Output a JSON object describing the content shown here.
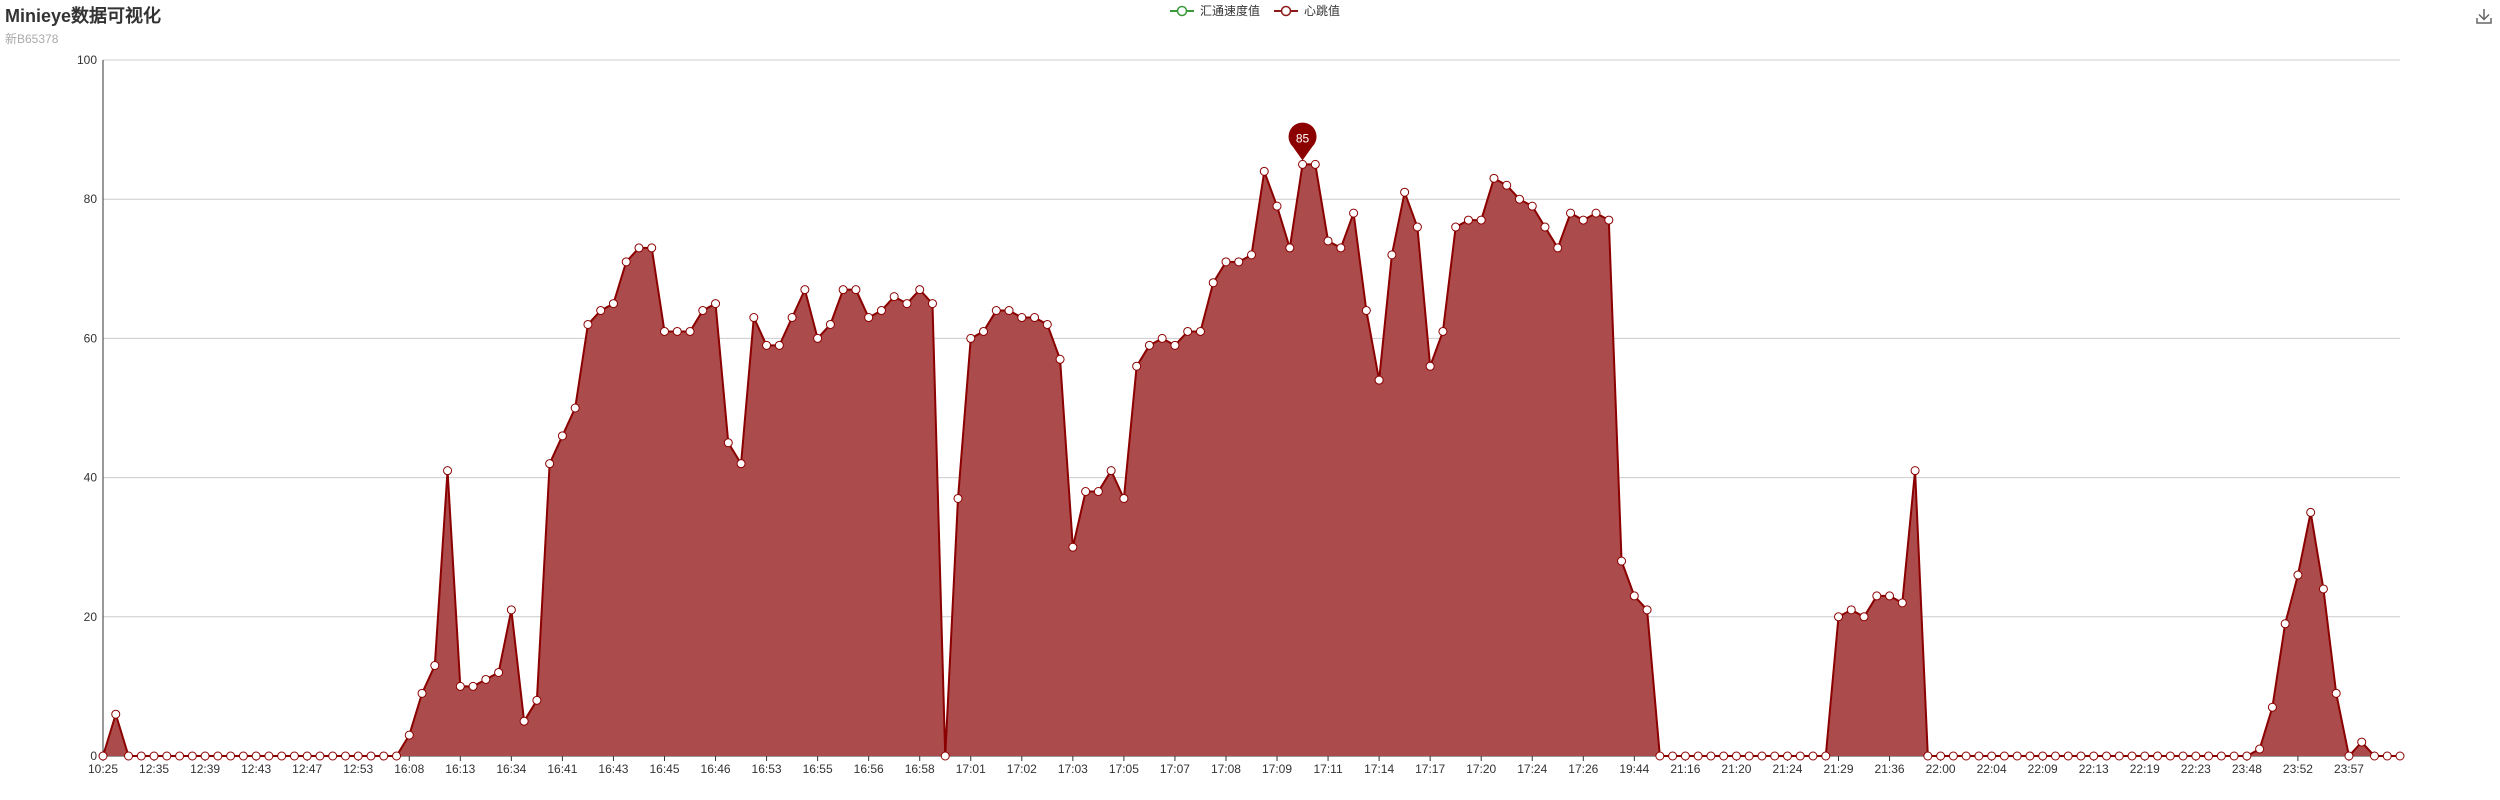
{
  "header": {
    "title": "Minieye数据可视化",
    "subtitle": "新B65378"
  },
  "legend": [
    {
      "name": "汇通速度值",
      "color": "#3a9a3a"
    },
    {
      "name": "心跳值",
      "color": "#8b1a1a"
    }
  ],
  "toolbox": {
    "icon": "download-icon"
  },
  "colors": {
    "area": "#ab4b4b",
    "line": "#8b0000",
    "pin": "#8b0000",
    "grid": "#cccccc"
  },
  "chart_data": {
    "type": "area",
    "ylim": [
      0,
      100
    ],
    "yticks": [
      0,
      20,
      40,
      60,
      80,
      100
    ],
    "grid": true,
    "legend_position": "top-center",
    "x_tick_labels": [
      "10:25",
      "12:35",
      "12:39",
      "12:43",
      "12:47",
      "12:53",
      "16:08",
      "16:13",
      "16:34",
      "16:41",
      "16:43",
      "16:45",
      "16:46",
      "16:53",
      "16:55",
      "16:56",
      "16:58",
      "17:01",
      "17:02",
      "17:03",
      "17:05",
      "17:07",
      "17:08",
      "17:09",
      "17:11",
      "17:14",
      "17:17",
      "17:20",
      "17:24",
      "17:26",
      "19:44",
      "21:16",
      "21:20",
      "21:24",
      "21:29",
      "21:36",
      "22:00",
      "22:04",
      "22:09",
      "22:13",
      "22:19",
      "22:23",
      "23:48",
      "23:52",
      "23:57"
    ],
    "x_tick_interval": 4,
    "series": [
      {
        "name": "汇通速度值",
        "values": []
      },
      {
        "name": "心跳值",
        "values": [
          0,
          6,
          0,
          0,
          0,
          0,
          0,
          0,
          0,
          0,
          0,
          0,
          0,
          0,
          0,
          0,
          0,
          0,
          0,
          0,
          0,
          0,
          0,
          0,
          3,
          9,
          13,
          41,
          10,
          10,
          11,
          12,
          21,
          5,
          8,
          42,
          46,
          50,
          62,
          64,
          65,
          71,
          73,
          73,
          61,
          61,
          61,
          64,
          65,
          45,
          42,
          63,
          59,
          59,
          63,
          67,
          60,
          62,
          67,
          67,
          63,
          64,
          66,
          65,
          67,
          65,
          0,
          37,
          60,
          61,
          64,
          64,
          63,
          63,
          62,
          57,
          30,
          38,
          38,
          41,
          37,
          56,
          59,
          60,
          59,
          61,
          61,
          68,
          71,
          71,
          72,
          84,
          79,
          73,
          85,
          85,
          74,
          73,
          78,
          64,
          54,
          72,
          81,
          76,
          56,
          61,
          76,
          77,
          77,
          83,
          82,
          80,
          79,
          76,
          73,
          78,
          77,
          78,
          77,
          28,
          23,
          21,
          0,
          0,
          0,
          0,
          0,
          0,
          0,
          0,
          0,
          0,
          0,
          0,
          0,
          0,
          20,
          21,
          20,
          23,
          23,
          22,
          41,
          0,
          0,
          0,
          0,
          0,
          0,
          0,
          0,
          0,
          0,
          0,
          0,
          0,
          0,
          0,
          0,
          0,
          0,
          0,
          0,
          0,
          0,
          0,
          0,
          0,
          0,
          1,
          7,
          19,
          26,
          35,
          24,
          9,
          0,
          2,
          0,
          0,
          0
        ]
      }
    ],
    "markpoint": {
      "series": "心跳值",
      "label": "85",
      "value": 85,
      "index": 94
    }
  }
}
